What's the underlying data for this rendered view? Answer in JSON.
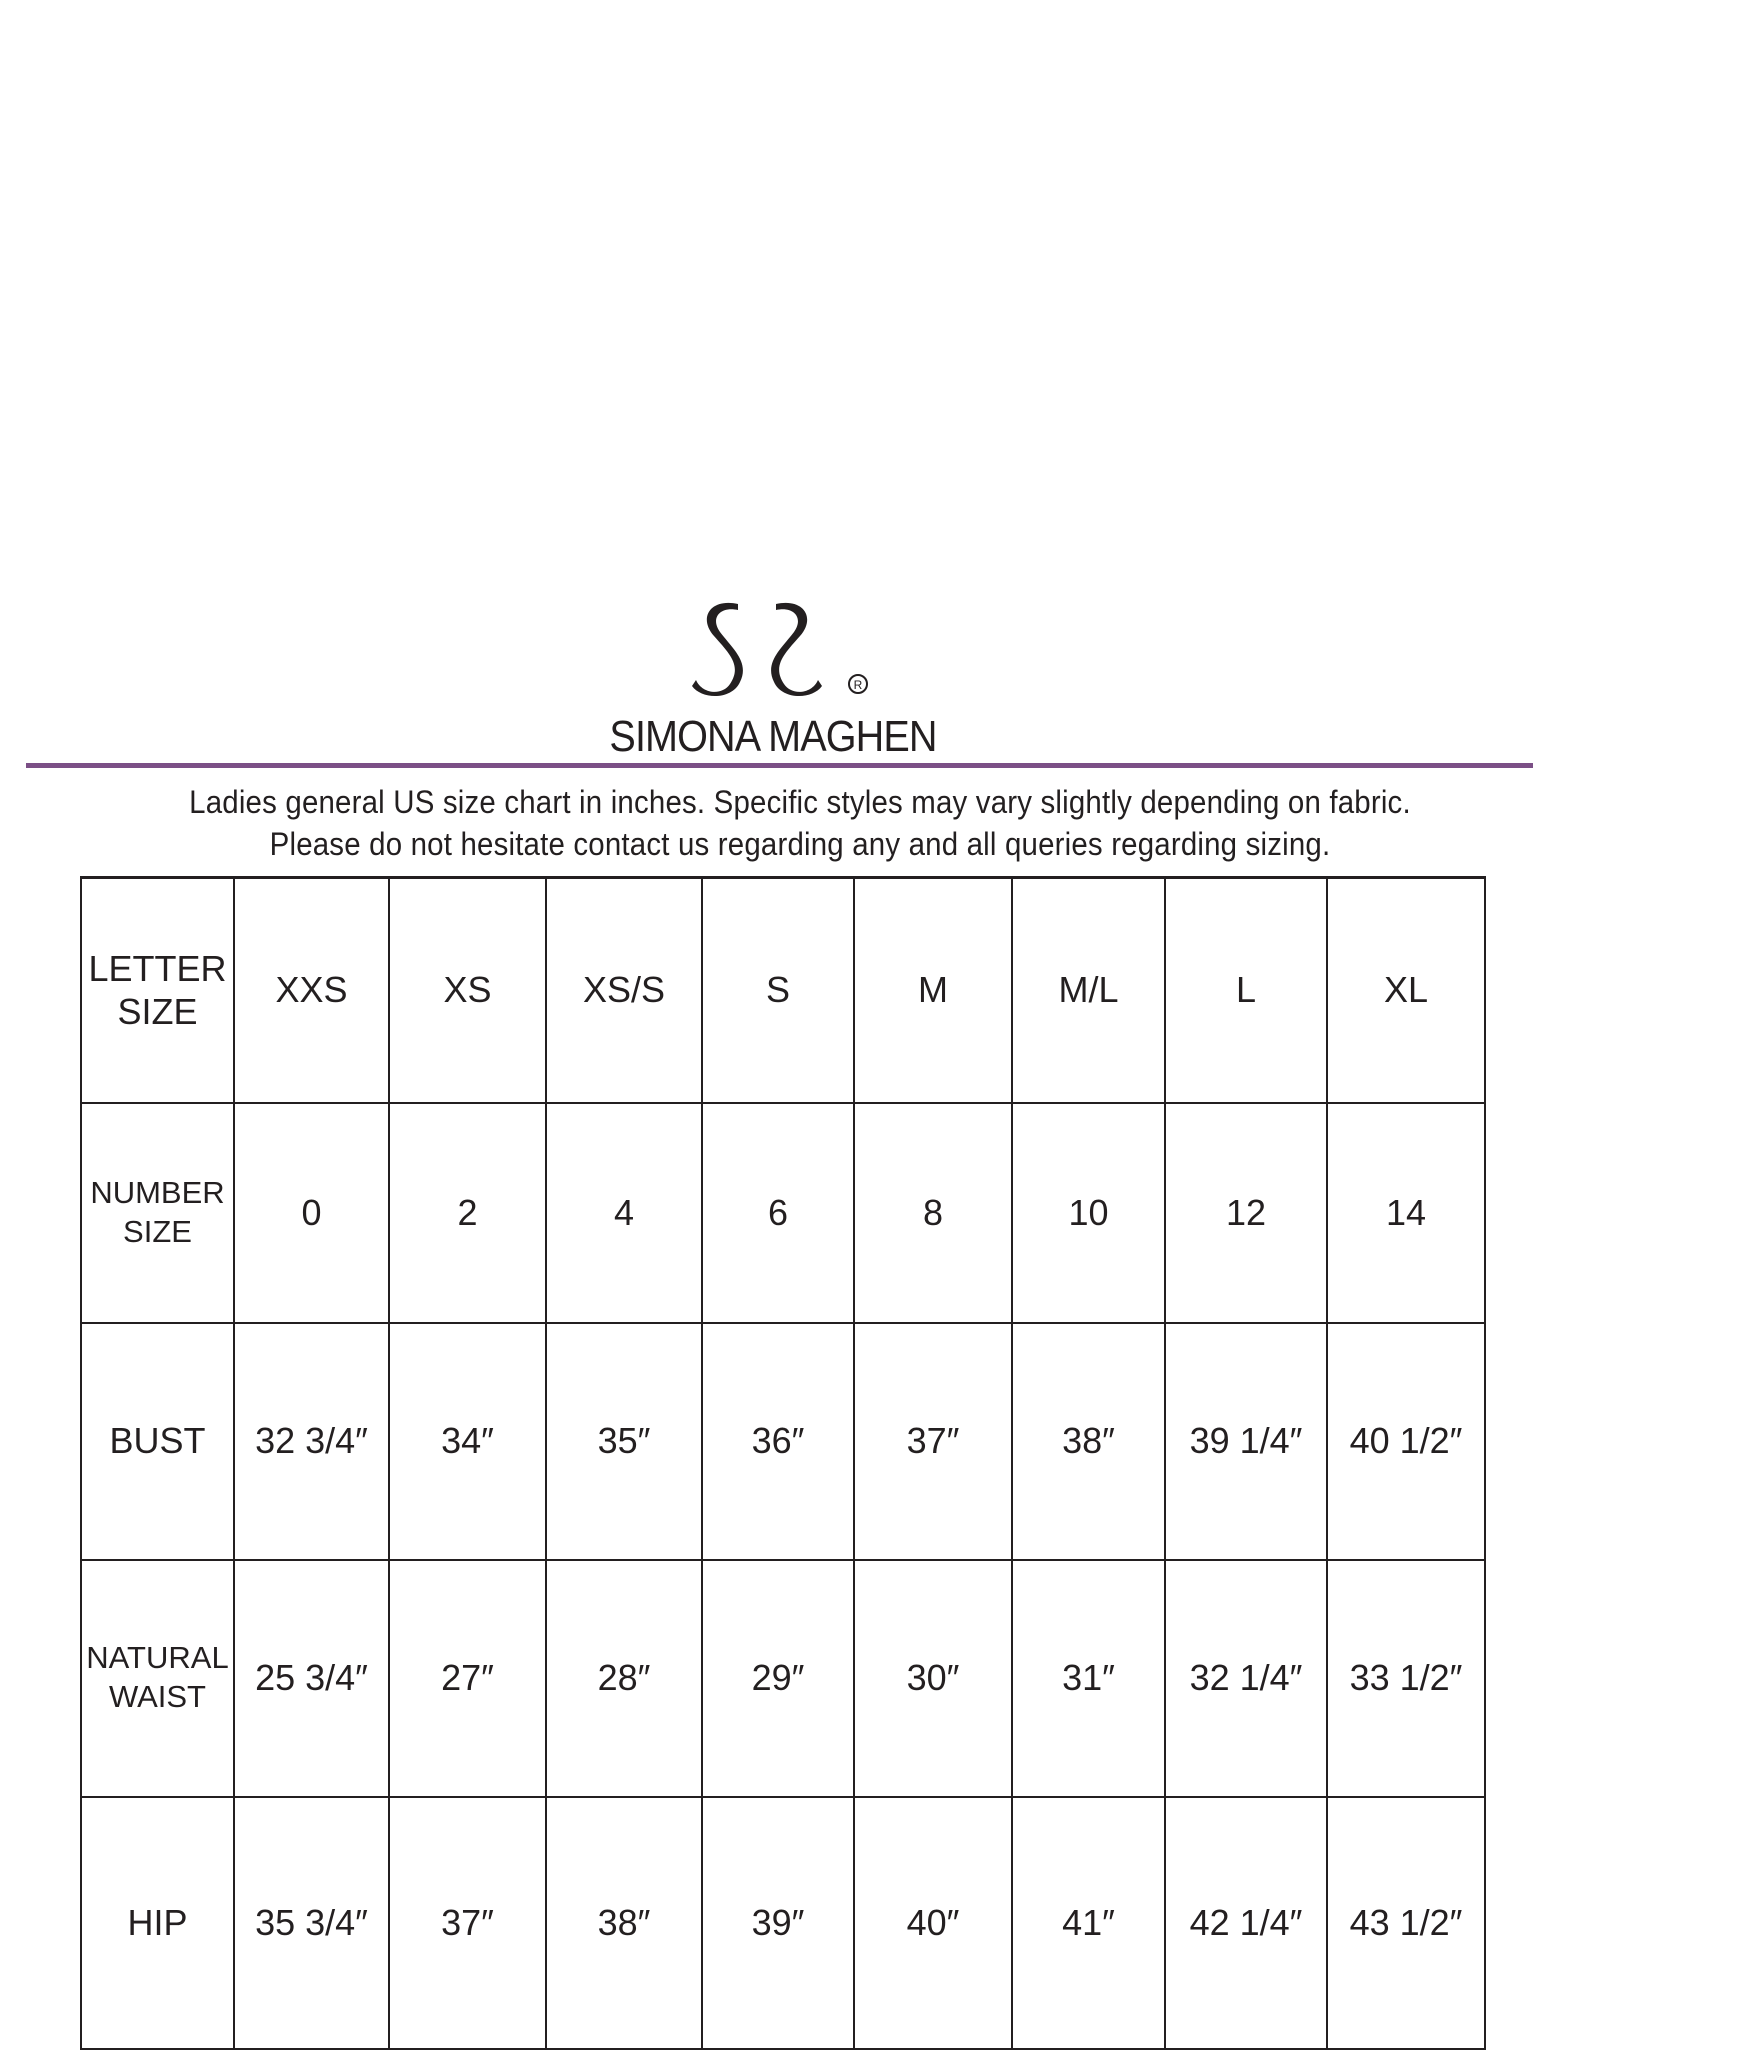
{
  "brand": {
    "name": "SIMONA MAGHEN",
    "logo_mark": "SS®"
  },
  "intro": {
    "line1": "Ladies general US size chart in inches.  Specific styles may vary slightly depending on fabric.",
    "line2": "Please do not hesitate contact us regarding any and all queries regarding sizing."
  },
  "colors": {
    "rule": "#7b4f86",
    "text": "#231f20"
  },
  "table": {
    "rows": [
      {
        "label1": "LETTER",
        "label2": "SIZE",
        "values": [
          "XXS",
          "XS",
          "XS/S",
          "S",
          "M",
          "M/L",
          "L",
          "XL"
        ]
      },
      {
        "label1": "NUMBER",
        "label2": "SIZE",
        "values": [
          "0",
          "2",
          "4",
          "6",
          "8",
          "10",
          "12",
          "14"
        ]
      },
      {
        "label1": "BUST",
        "label2": "",
        "values": [
          "32 3/4″",
          "34″",
          "35″",
          "36″",
          "37″",
          "38″",
          "39 1/4″",
          "40 1/2″"
        ]
      },
      {
        "label1": "NATURAL",
        "label2": "WAIST",
        "values": [
          "25 3/4″",
          "27″",
          "28″",
          "29″",
          "30″",
          "31″",
          "32 1/4″",
          "33 1/2″"
        ]
      },
      {
        "label1": "HIP",
        "label2": "",
        "values": [
          "35 3/4″",
          "37″",
          "38″",
          "39″",
          "40″",
          "41″",
          "42 1/4″",
          "43 1/2″"
        ]
      }
    ]
  }
}
